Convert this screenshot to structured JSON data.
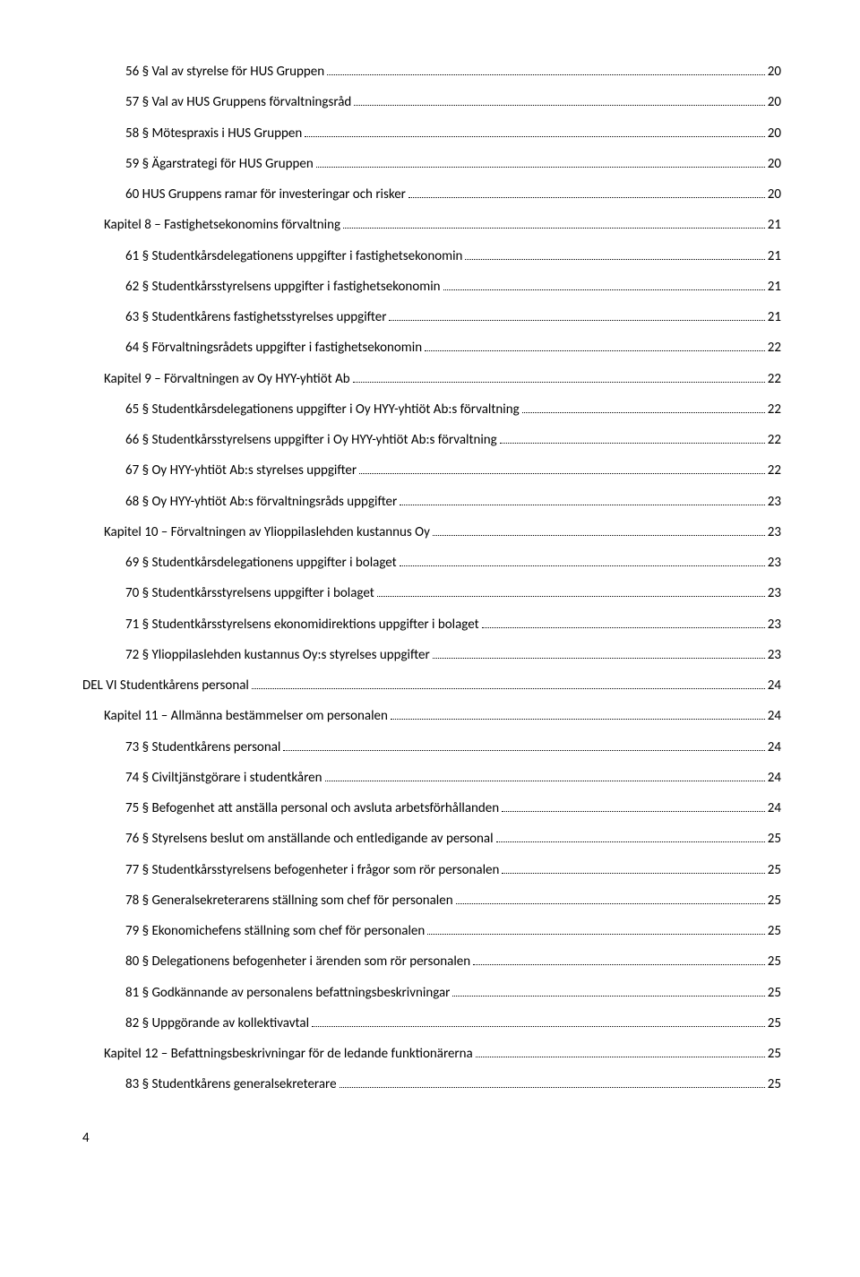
{
  "pageNumber": "4",
  "toc": [
    {
      "level": 2,
      "label": "56 § Val av styrelse för HUS Gruppen",
      "page": "20"
    },
    {
      "level": 2,
      "label": "57 § Val av HUS Gruppens förvaltningsråd",
      "page": "20"
    },
    {
      "level": 2,
      "label": "58 § Mötespraxis i HUS Gruppen",
      "page": "20"
    },
    {
      "level": 2,
      "label": "59 § Ägarstrategi för HUS Gruppen",
      "page": "20"
    },
    {
      "level": 2,
      "label": "60 HUS Gruppens ramar för investeringar och risker",
      "page": "20"
    },
    {
      "level": 1,
      "label": "Kapitel 8 – Fastighetsekonomins förvaltning",
      "page": "21"
    },
    {
      "level": 2,
      "label": "61 § Studentkårsdelegationens uppgifter i fastighetsekonomin",
      "page": "21"
    },
    {
      "level": 2,
      "label": "62 § Studentkårsstyrelsens uppgifter i fastighetsekonomin",
      "page": "21"
    },
    {
      "level": 2,
      "label": "63 § Studentkårens fastighetsstyrelses uppgifter",
      "page": "21"
    },
    {
      "level": 2,
      "label": "64 § Förvaltningsrådets uppgifter i fastighetsekonomin",
      "page": "22"
    },
    {
      "level": 1,
      "label": "Kapitel 9 – Förvaltningen av Oy HYY-yhtiöt Ab",
      "page": "22"
    },
    {
      "level": 2,
      "label": "65 § Studentkårsdelegationens uppgifter i Oy HYY-yhtiöt Ab:s förvaltning",
      "page": "22"
    },
    {
      "level": 2,
      "label": "66 § Studentkårsstyrelsens uppgifter i Oy HYY-yhtiöt Ab:s förvaltning",
      "page": "22"
    },
    {
      "level": 2,
      "label": "67 § Oy HYY-yhtiöt Ab:s styrelses uppgifter",
      "page": "22"
    },
    {
      "level": 2,
      "label": "68 § Oy HYY-yhtiöt Ab:s förvaltningsråds uppgifter",
      "page": "23"
    },
    {
      "level": 1,
      "label": "Kapitel 10 – Förvaltningen av Ylioppilaslehden kustannus Oy",
      "page": "23"
    },
    {
      "level": 2,
      "label": "69 § Studentkårsdelegationens uppgifter i bolaget",
      "page": "23"
    },
    {
      "level": 2,
      "label": "70 § Studentkårsstyrelsens uppgifter i bolaget",
      "page": "23"
    },
    {
      "level": 2,
      "label": "71 § Studentkårsstyrelsens ekonomidirektions uppgifter i bolaget",
      "page": "23"
    },
    {
      "level": 2,
      "label": "72 § Ylioppilaslehden kustannus Oy:s styrelses uppgifter",
      "page": "23"
    },
    {
      "level": 0,
      "label": "DEL VI Studentkårens personal",
      "page": "24"
    },
    {
      "level": 1,
      "label": "Kapitel 11 – Allmänna bestämmelser om personalen",
      "page": "24"
    },
    {
      "level": 2,
      "label": "73 § Studentkårens personal",
      "page": "24"
    },
    {
      "level": 2,
      "label": "74 § Civiltjänstgörare i studentkåren",
      "page": "24"
    },
    {
      "level": 2,
      "label": "75 § Befogenhet att anställa personal och avsluta arbetsförhållanden",
      "page": "24"
    },
    {
      "level": 2,
      "label": "76 § Styrelsens beslut om anställande och entledigande av personal",
      "page": "25"
    },
    {
      "level": 2,
      "label": "77 § Studentkårsstyrelsens befogenheter i frågor som rör personalen",
      "page": "25"
    },
    {
      "level": 2,
      "label": "78 § Generalsekreterarens ställning som chef för personalen",
      "page": "25"
    },
    {
      "level": 2,
      "label": "79 § Ekonomichefens ställning som chef för personalen",
      "page": "25"
    },
    {
      "level": 2,
      "label": "80 § Delegationens befogenheter i ärenden som rör personalen",
      "page": "25"
    },
    {
      "level": 2,
      "label": "81 § Godkännande av personalens befattningsbeskrivningar",
      "page": "25"
    },
    {
      "level": 2,
      "label": "82 § Uppgörande av kollektivavtal",
      "page": "25"
    },
    {
      "level": 1,
      "label": "Kapitel 12 – Befattningsbeskrivningar för de ledande funktionärerna",
      "page": "25"
    },
    {
      "level": 2,
      "label": "83 § Studentkårens generalsekreterare",
      "page": "25"
    }
  ]
}
